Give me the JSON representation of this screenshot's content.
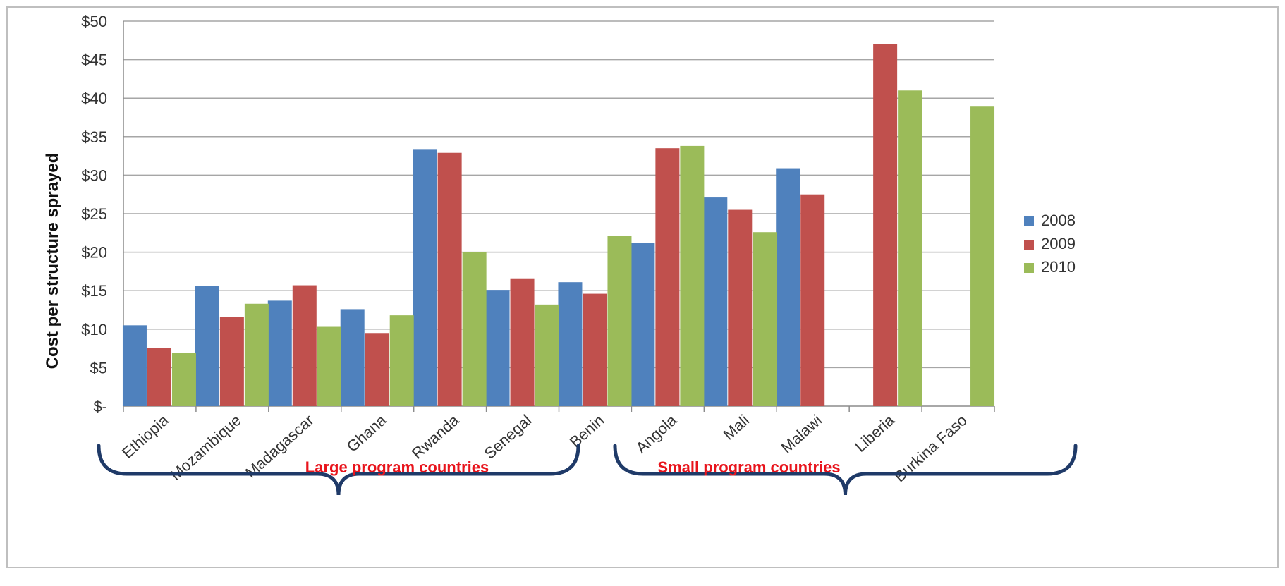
{
  "chart_data": {
    "type": "bar",
    "ylabel": "Cost per structure sprayed",
    "xlabel": "",
    "ylim": [
      0,
      50
    ],
    "yticks": [
      0,
      5,
      10,
      15,
      20,
      25,
      30,
      35,
      40,
      45,
      50
    ],
    "ytick_labels": [
      "$-",
      "$5",
      "$10",
      "$15",
      "$20",
      "$25",
      "$30",
      "$35",
      "$40",
      "$45",
      "$50"
    ],
    "grid": true,
    "legend_position": "right",
    "categories": [
      "Ethiopia",
      "Mozambique",
      "Madagascar",
      "Ghana",
      "Rwanda",
      "Senegal",
      "Benin",
      "Angola",
      "Mali",
      "Malawi",
      "Liberia",
      "Burkina Faso"
    ],
    "series": [
      {
        "name": "2008",
        "color": "#4f81bd",
        "values": [
          10.5,
          15.6,
          13.7,
          12.6,
          33.3,
          15.1,
          16.1,
          21.2,
          27.1,
          30.9,
          null,
          null
        ]
      },
      {
        "name": "2009",
        "color": "#c0504d",
        "values": [
          7.6,
          11.6,
          15.7,
          9.5,
          32.9,
          16.6,
          14.6,
          33.5,
          25.5,
          27.5,
          47.0,
          null
        ]
      },
      {
        "name": "2010",
        "color": "#9bbb59",
        "values": [
          6.9,
          13.3,
          10.3,
          11.8,
          20.0,
          13.2,
          22.1,
          33.8,
          22.6,
          null,
          41.0,
          38.9
        ]
      }
    ],
    "annotations": [
      {
        "text": "Large program countries",
        "color": "#e8141c",
        "spans": [
          "Ethiopia",
          "Benin"
        ]
      },
      {
        "text": "Small program countries",
        "color": "#e8141c",
        "spans": [
          "Angola",
          "Burkina Faso"
        ]
      }
    ]
  }
}
